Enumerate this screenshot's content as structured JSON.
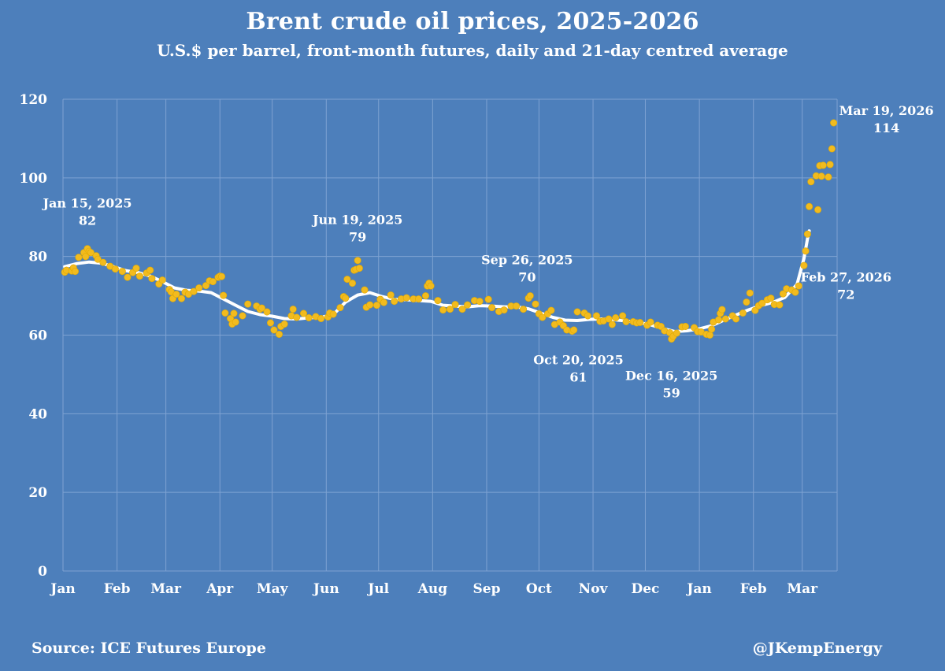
{
  "title": "Brent crude oil prices, 2025-2026",
  "subtitle": "U.S.$ per barrel, front-month futures, daily and 21-day centred average",
  "source": "Source: ICE Futures Europe",
  "handle": "@JKempEnergy",
  "colors": {
    "background": "#4d7fbb",
    "daily_points": "#f2bb1e",
    "average_line": "#ffffff",
    "gridlines": "#7ea2d2"
  },
  "chart_data": {
    "type": "scatter",
    "grid": true,
    "ylim": [
      0,
      120
    ],
    "yticks": [
      0,
      20,
      40,
      60,
      80,
      100,
      120
    ],
    "xlim": [
      "2025-01-01",
      "2026-03-21"
    ],
    "x_tick_labels": [
      {
        "label": "Jan",
        "date": "2025-01-01"
      },
      {
        "label": "Feb",
        "date": "2025-02-01"
      },
      {
        "label": "Mar",
        "date": "2025-03-01"
      },
      {
        "label": "Apr",
        "date": "2025-04-01"
      },
      {
        "label": "May",
        "date": "2025-05-01"
      },
      {
        "label": "Jun",
        "date": "2025-06-01"
      },
      {
        "label": "Jul",
        "date": "2025-07-01"
      },
      {
        "label": "Aug",
        "date": "2025-08-01"
      },
      {
        "label": "Sep",
        "date": "2025-09-01"
      },
      {
        "label": "Oct",
        "date": "2025-10-01"
      },
      {
        "label": "Nov",
        "date": "2025-11-01"
      },
      {
        "label": "Dec",
        "date": "2025-12-01"
      },
      {
        "label": "Jan",
        "date": "2026-01-01"
      },
      {
        "label": "Feb",
        "date": "2026-02-01"
      },
      {
        "label": "Mar",
        "date": "2026-03-01"
      }
    ],
    "series": [
      {
        "kind": "daily",
        "style": "points",
        "data": [
          [
            "2025-01-02",
            76.0
          ],
          [
            "2025-01-03",
            76.5
          ],
          [
            "2025-01-06",
            76.3
          ],
          [
            "2025-01-07",
            77.1
          ],
          [
            "2025-01-08",
            76.2
          ],
          [
            "2025-01-10",
            79.8
          ],
          [
            "2025-01-13",
            81.0
          ],
          [
            "2025-01-14",
            80.0
          ],
          [
            "2025-01-15",
            82.0
          ],
          [
            "2025-01-16",
            81.3
          ],
          [
            "2025-01-17",
            81.0
          ],
          [
            "2025-01-20",
            80.2
          ],
          [
            "2025-01-21",
            79.3
          ],
          [
            "2025-01-24",
            78.5
          ],
          [
            "2025-01-28",
            77.5
          ],
          [
            "2025-01-31",
            76.8
          ],
          [
            "2025-02-04",
            76.2
          ],
          [
            "2025-02-07",
            74.7
          ],
          [
            "2025-02-10",
            75.9
          ],
          [
            "2025-02-12",
            77.0
          ],
          [
            "2025-02-14",
            75.0
          ],
          [
            "2025-02-18",
            75.8
          ],
          [
            "2025-02-20",
            76.5
          ],
          [
            "2025-02-21",
            74.4
          ],
          [
            "2025-02-25",
            73.0
          ],
          [
            "2025-02-27",
            74.0
          ],
          [
            "2025-03-03",
            71.6
          ],
          [
            "2025-03-04",
            71.0
          ],
          [
            "2025-03-05",
            69.3
          ],
          [
            "2025-03-07",
            70.4
          ],
          [
            "2025-03-10",
            69.3
          ],
          [
            "2025-03-12",
            70.9
          ],
          [
            "2025-03-14",
            70.4
          ],
          [
            "2025-03-17",
            71.1
          ],
          [
            "2025-03-20",
            72.0
          ],
          [
            "2025-03-24",
            72.6
          ],
          [
            "2025-03-26",
            73.8
          ],
          [
            "2025-03-28",
            73.6
          ],
          [
            "2025-03-31",
            74.7
          ],
          [
            "2025-04-01",
            75.0
          ],
          [
            "2025-04-02",
            74.9
          ],
          [
            "2025-04-03",
            70.1
          ],
          [
            "2025-04-04",
            65.6
          ],
          [
            "2025-04-07",
            64.2
          ],
          [
            "2025-04-08",
            62.8
          ],
          [
            "2025-04-09",
            65.5
          ],
          [
            "2025-04-10",
            63.3
          ],
          [
            "2025-04-14",
            64.9
          ],
          [
            "2025-04-17",
            67.9
          ],
          [
            "2025-04-22",
            67.4
          ],
          [
            "2025-04-24",
            66.6
          ],
          [
            "2025-04-25",
            66.9
          ],
          [
            "2025-04-28",
            65.9
          ],
          [
            "2025-04-30",
            63.1
          ],
          [
            "2025-05-02",
            61.3
          ],
          [
            "2025-05-05",
            60.2
          ],
          [
            "2025-05-06",
            62.2
          ],
          [
            "2025-05-08",
            62.8
          ],
          [
            "2025-05-12",
            64.9
          ],
          [
            "2025-05-13",
            66.6
          ],
          [
            "2025-05-15",
            64.5
          ],
          [
            "2025-05-19",
            65.5
          ],
          [
            "2025-05-22",
            64.4
          ],
          [
            "2025-05-26",
            64.7
          ],
          [
            "2025-05-29",
            64.2
          ],
          [
            "2025-06-02",
            64.6
          ],
          [
            "2025-06-03",
            65.6
          ],
          [
            "2025-06-05",
            65.3
          ],
          [
            "2025-06-09",
            67.0
          ],
          [
            "2025-06-11",
            69.8
          ],
          [
            "2025-06-12",
            69.4
          ],
          [
            "2025-06-13",
            74.2
          ],
          [
            "2025-06-16",
            73.2
          ],
          [
            "2025-06-17",
            76.5
          ],
          [
            "2025-06-18",
            76.7
          ],
          [
            "2025-06-19",
            79.0
          ],
          [
            "2025-06-20",
            77.0
          ],
          [
            "2025-06-23",
            71.5
          ],
          [
            "2025-06-24",
            67.1
          ],
          [
            "2025-06-26",
            67.7
          ],
          [
            "2025-06-30",
            67.6
          ],
          [
            "2025-07-02",
            69.1
          ],
          [
            "2025-07-04",
            68.3
          ],
          [
            "2025-07-08",
            70.2
          ],
          [
            "2025-07-10",
            68.6
          ],
          [
            "2025-07-14",
            69.2
          ],
          [
            "2025-07-17",
            69.5
          ],
          [
            "2025-07-21",
            69.2
          ],
          [
            "2025-07-24",
            69.2
          ],
          [
            "2025-07-28",
            70.0
          ],
          [
            "2025-07-29",
            72.5
          ],
          [
            "2025-07-30",
            73.2
          ],
          [
            "2025-07-31",
            72.5
          ],
          [
            "2025-08-04",
            68.8
          ],
          [
            "2025-08-07",
            66.4
          ],
          [
            "2025-08-11",
            66.6
          ],
          [
            "2025-08-14",
            67.8
          ],
          [
            "2025-08-18",
            66.6
          ],
          [
            "2025-08-21",
            67.7
          ],
          [
            "2025-08-25",
            68.8
          ],
          [
            "2025-08-28",
            68.6
          ],
          [
            "2025-09-02",
            69.1
          ],
          [
            "2025-09-04",
            67.0
          ],
          [
            "2025-09-08",
            66.0
          ],
          [
            "2025-09-11",
            66.4
          ],
          [
            "2025-09-15",
            67.4
          ],
          [
            "2025-09-18",
            67.4
          ],
          [
            "2025-09-22",
            66.6
          ],
          [
            "2025-09-25",
            69.4
          ],
          [
            "2025-09-26",
            70.0
          ],
          [
            "2025-09-29",
            67.9
          ],
          [
            "2025-10-01",
            65.4
          ],
          [
            "2025-10-03",
            64.5
          ],
          [
            "2025-10-06",
            65.4
          ],
          [
            "2025-10-08",
            66.3
          ],
          [
            "2025-10-10",
            62.7
          ],
          [
            "2025-10-13",
            63.3
          ],
          [
            "2025-10-15",
            62.4
          ],
          [
            "2025-10-17",
            61.3
          ],
          [
            "2025-10-20",
            61.0
          ],
          [
            "2025-10-21",
            61.3
          ],
          [
            "2025-10-23",
            65.9
          ],
          [
            "2025-10-27",
            65.6
          ],
          [
            "2025-10-29",
            64.9
          ],
          [
            "2025-11-03",
            64.9
          ],
          [
            "2025-11-05",
            63.5
          ],
          [
            "2025-11-07",
            63.6
          ],
          [
            "2025-11-10",
            64.1
          ],
          [
            "2025-11-12",
            62.7
          ],
          [
            "2025-11-14",
            64.4
          ],
          [
            "2025-11-18",
            64.9
          ],
          [
            "2025-11-20",
            63.4
          ],
          [
            "2025-11-24",
            63.4
          ],
          [
            "2025-11-26",
            63.1
          ],
          [
            "2025-11-28",
            63.2
          ],
          [
            "2025-12-02",
            62.5
          ],
          [
            "2025-12-04",
            63.3
          ],
          [
            "2025-12-08",
            62.5
          ],
          [
            "2025-12-10",
            62.2
          ],
          [
            "2025-12-12",
            61.1
          ],
          [
            "2025-12-15",
            60.6
          ],
          [
            "2025-12-16",
            59.0
          ],
          [
            "2025-12-17",
            59.7
          ],
          [
            "2025-12-19",
            60.5
          ],
          [
            "2025-12-22",
            62.1
          ],
          [
            "2025-12-24",
            62.2
          ],
          [
            "2025-12-29",
            61.9
          ],
          [
            "2025-12-31",
            60.9
          ],
          [
            "2026-01-02",
            60.8
          ],
          [
            "2026-01-05",
            60.2
          ],
          [
            "2026-01-07",
            60.0
          ],
          [
            "2026-01-08",
            61.5
          ],
          [
            "2026-01-09",
            63.3
          ],
          [
            "2026-01-12",
            63.9
          ],
          [
            "2026-01-13",
            65.5
          ],
          [
            "2026-01-14",
            66.5
          ],
          [
            "2026-01-16",
            64.1
          ],
          [
            "2026-01-20",
            64.9
          ],
          [
            "2026-01-22",
            64.1
          ],
          [
            "2026-01-26",
            65.6
          ],
          [
            "2026-01-28",
            68.4
          ],
          [
            "2026-01-30",
            70.7
          ],
          [
            "2026-02-02",
            66.3
          ],
          [
            "2026-02-04",
            67.5
          ],
          [
            "2026-02-06",
            68.1
          ],
          [
            "2026-02-09",
            69.0
          ],
          [
            "2026-02-11",
            69.4
          ],
          [
            "2026-02-13",
            67.8
          ],
          [
            "2026-02-16",
            67.7
          ],
          [
            "2026-02-18",
            70.5
          ],
          [
            "2026-02-20",
            71.8
          ],
          [
            "2026-02-23",
            71.5
          ],
          [
            "2026-02-25",
            70.9
          ],
          [
            "2026-02-27",
            72.5
          ],
          [
            "2026-03-02",
            77.7
          ],
          [
            "2026-03-03",
            81.4
          ],
          [
            "2026-03-04",
            85.7
          ],
          [
            "2026-03-05",
            92.7
          ],
          [
            "2026-03-06",
            99.0
          ],
          [
            "2026-03-09",
            100.5
          ],
          [
            "2026-03-10",
            91.9
          ],
          [
            "2026-03-11",
            103.1
          ],
          [
            "2026-03-12",
            100.4
          ],
          [
            "2026-03-13",
            103.2
          ],
          [
            "2026-03-16",
            100.2
          ],
          [
            "2026-03-17",
            103.4
          ],
          [
            "2026-03-18",
            107.4
          ],
          [
            "2026-03-19",
            114.0
          ]
        ]
      },
      {
        "kind": "21-day centred average",
        "style": "line",
        "data": [
          [
            "2025-01-02",
            77.4
          ],
          [
            "2025-01-09",
            78.2
          ],
          [
            "2025-01-16",
            78.6
          ],
          [
            "2025-01-23",
            78.3
          ],
          [
            "2025-01-30",
            77.4
          ],
          [
            "2025-02-06",
            76.4
          ],
          [
            "2025-02-13",
            75.9
          ],
          [
            "2025-02-20",
            75.0
          ],
          [
            "2025-02-27",
            73.6
          ],
          [
            "2025-03-06",
            72.0
          ],
          [
            "2025-03-13",
            71.4
          ],
          [
            "2025-03-20",
            71.2
          ],
          [
            "2025-03-27",
            70.8
          ],
          [
            "2025-04-03",
            69.2
          ],
          [
            "2025-04-10",
            67.6
          ],
          [
            "2025-04-17",
            66.0
          ],
          [
            "2025-04-24",
            65.2
          ],
          [
            "2025-05-01",
            64.8
          ],
          [
            "2025-05-08",
            64.2
          ],
          [
            "2025-05-15",
            64.1
          ],
          [
            "2025-05-22",
            64.4
          ],
          [
            "2025-05-29",
            64.5
          ],
          [
            "2025-06-05",
            65.2
          ],
          [
            "2025-06-12",
            68.4
          ],
          [
            "2025-06-19",
            70.2
          ],
          [
            "2025-06-26",
            70.8
          ],
          [
            "2025-07-03",
            69.8
          ],
          [
            "2025-07-10",
            69.1
          ],
          [
            "2025-07-17",
            69.0
          ],
          [
            "2025-07-24",
            68.8
          ],
          [
            "2025-07-31",
            68.6
          ],
          [
            "2025-08-07",
            67.6
          ],
          [
            "2025-08-14",
            67.4
          ],
          [
            "2025-08-21",
            67.2
          ],
          [
            "2025-08-28",
            67.5
          ],
          [
            "2025-09-04",
            67.4
          ],
          [
            "2025-09-11",
            67.2
          ],
          [
            "2025-09-18",
            67.2
          ],
          [
            "2025-09-25",
            66.7
          ],
          [
            "2025-10-02",
            65.6
          ],
          [
            "2025-10-09",
            64.5
          ],
          [
            "2025-10-16",
            63.8
          ],
          [
            "2025-10-23",
            63.7
          ],
          [
            "2025-10-30",
            64.0
          ],
          [
            "2025-11-06",
            64.1
          ],
          [
            "2025-11-13",
            63.9
          ],
          [
            "2025-11-20",
            63.6
          ],
          [
            "2025-11-27",
            63.2
          ],
          [
            "2025-12-04",
            62.6
          ],
          [
            "2025-12-11",
            61.7
          ],
          [
            "2025-12-18",
            60.9
          ],
          [
            "2025-12-25",
            61.1
          ],
          [
            "2026-01-01",
            61.6
          ],
          [
            "2026-01-08",
            62.4
          ],
          [
            "2026-01-15",
            63.8
          ],
          [
            "2026-01-22",
            65.1
          ],
          [
            "2026-01-29",
            66.4
          ],
          [
            "2026-02-05",
            67.5
          ],
          [
            "2026-02-12",
            68.3
          ],
          [
            "2026-02-19",
            69.6
          ],
          [
            "2026-02-26",
            72.9
          ],
          [
            "2026-03-02",
            79.5
          ],
          [
            "2026-03-04",
            84.5
          ],
          [
            "2026-03-05",
            86.5
          ]
        ]
      }
    ],
    "annotations": [
      {
        "date_label": "Jan 15, 2025",
        "value_label": "82",
        "x": "2025-01-15",
        "y": 82
      },
      {
        "date_label": "Jun 19, 2025",
        "value_label": "79",
        "x": "2025-06-19",
        "y": 79
      },
      {
        "date_label": "Sep 26, 2025",
        "value_label": "70",
        "x": "2025-09-26",
        "y": 70
      },
      {
        "date_label": "Oct 20, 2025",
        "value_label": "61",
        "x": "2025-10-20",
        "y": 61
      },
      {
        "date_label": "Dec 16, 2025",
        "value_label": "59",
        "x": "2025-12-16",
        "y": 59
      },
      {
        "date_label": "Feb 27, 2026",
        "value_label": "72",
        "x": "2026-02-27",
        "y": 72
      },
      {
        "date_label": "Mar 19, 2026",
        "value_label": "114",
        "x": "2026-03-19",
        "y": 114
      }
    ]
  }
}
